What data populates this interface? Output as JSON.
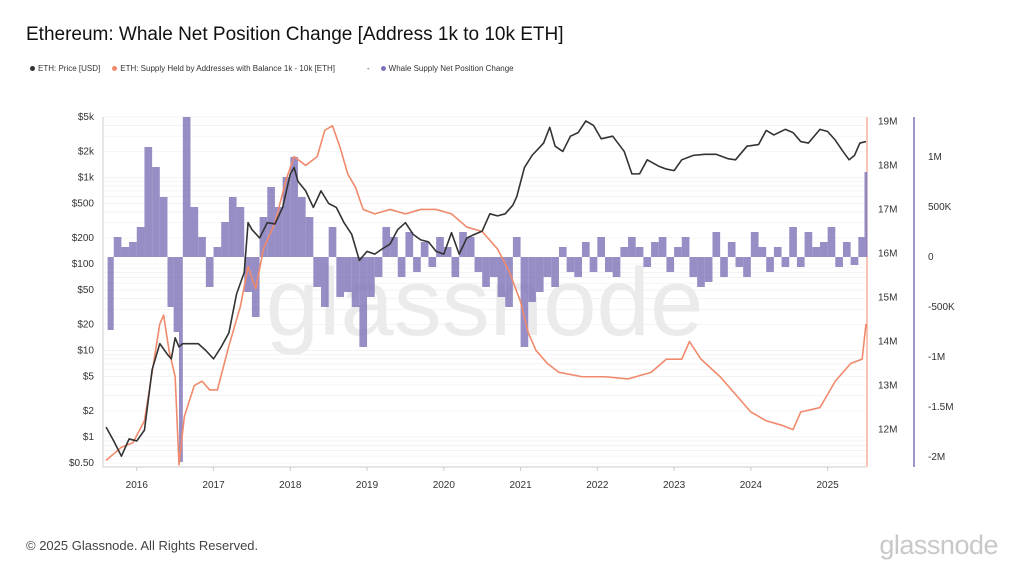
{
  "title": "Ethereum: Whale Net Position Change [Address 1k to 10k ETH]",
  "legend": [
    {
      "label": "ETH: Price [USD]",
      "color": "#333333"
    },
    {
      "label": "ETH: Supply Held by Addresses with Balance 1k - 10k [ETH]",
      "color": "#f08a6c"
    },
    {
      "label": "Whale Supply Net Position Change",
      "color": "#7e72b8",
      "prefix": "-"
    }
  ],
  "footer": "© 2025 Glassnode. All Rights Reserved.",
  "logo": "glassnode",
  "watermark": "glassnode",
  "chart_data": {
    "type": "line",
    "title": "Ethereum: Whale Net Position Change [Address 1k to 10k ETH]",
    "x_ticks": [
      "2016",
      "2017",
      "2018",
      "2019",
      "2020",
      "2021",
      "2022",
      "2023",
      "2024",
      "2025"
    ],
    "xlim": [
      2015.56,
      2025.5
    ],
    "y_left": {
      "scale": "log",
      "range": [
        0.45,
        5000
      ],
      "ticks": [
        "$5k",
        "$2k",
        "$1k",
        "$500",
        "$200",
        "$100",
        "$50",
        "$20",
        "$10",
        "$5",
        "$2",
        "$1",
        "$0.50"
      ],
      "tick_values": [
        5000,
        2000,
        1000,
        500,
        200,
        100,
        50,
        20,
        10,
        5,
        2,
        1,
        0.5
      ]
    },
    "y_right1": {
      "scale": "linear",
      "range": [
        11.15,
        19.1
      ],
      "ticks": [
        "19M",
        "18M",
        "17M",
        "16M",
        "15M",
        "14M",
        "13M",
        "12M"
      ],
      "tick_values": [
        19,
        18,
        17,
        16,
        15,
        14,
        13,
        12
      ],
      "unit": "M"
    },
    "y_right2": {
      "scale": "linear",
      "range": [
        -2.1,
        1.4
      ],
      "ticks": [
        "1M",
        "500K",
        "0",
        "-500K",
        "-1M",
        "-1.5M",
        "-2M"
      ],
      "tick_values": [
        1,
        0.5,
        0,
        -0.5,
        -1,
        -1.5,
        -2
      ],
      "unit": "M"
    },
    "grid": true,
    "series": [
      {
        "name": "ETH: Price [USD]",
        "axis": "left",
        "color": "#333333",
        "type": "line",
        "points": [
          [
            2015.6,
            1.3
          ],
          [
            2015.7,
            0.9
          ],
          [
            2015.8,
            0.6
          ],
          [
            2015.9,
            0.95
          ],
          [
            2016.0,
            0.9
          ],
          [
            2016.1,
            1.2
          ],
          [
            2016.2,
            6
          ],
          [
            2016.3,
            12
          ],
          [
            2016.4,
            9
          ],
          [
            2016.45,
            8
          ],
          [
            2016.5,
            14
          ],
          [
            2016.55,
            11
          ],
          [
            2016.6,
            12
          ],
          [
            2016.8,
            12
          ],
          [
            2016.9,
            10
          ],
          [
            2017.0,
            8
          ],
          [
            2017.1,
            11
          ],
          [
            2017.2,
            16
          ],
          [
            2017.3,
            45
          ],
          [
            2017.4,
            80
          ],
          [
            2017.45,
            300
          ],
          [
            2017.5,
            250
          ],
          [
            2017.6,
            200
          ],
          [
            2017.7,
            300
          ],
          [
            2017.8,
            290
          ],
          [
            2017.9,
            450
          ],
          [
            2018.0,
            1100
          ],
          [
            2018.05,
            1300
          ],
          [
            2018.1,
            900
          ],
          [
            2018.2,
            700
          ],
          [
            2018.3,
            450
          ],
          [
            2018.4,
            700
          ],
          [
            2018.5,
            500
          ],
          [
            2018.6,
            450
          ],
          [
            2018.7,
            300
          ],
          [
            2018.8,
            220
          ],
          [
            2018.9,
            110
          ],
          [
            2019.0,
            140
          ],
          [
            2019.1,
            130
          ],
          [
            2019.2,
            150
          ],
          [
            2019.3,
            170
          ],
          [
            2019.4,
            250
          ],
          [
            2019.5,
            300
          ],
          [
            2019.6,
            220
          ],
          [
            2019.7,
            190
          ],
          [
            2019.8,
            180
          ],
          [
            2019.9,
            140
          ],
          [
            2020.0,
            130
          ],
          [
            2020.1,
            230
          ],
          [
            2020.2,
            130
          ],
          [
            2020.3,
            200
          ],
          [
            2020.4,
            220
          ],
          [
            2020.5,
            240
          ],
          [
            2020.6,
            380
          ],
          [
            2020.7,
            360
          ],
          [
            2020.8,
            380
          ],
          [
            2020.9,
            480
          ],
          [
            2020.95,
            600
          ],
          [
            2021.05,
            1300
          ],
          [
            2021.15,
            1800
          ],
          [
            2021.3,
            2500
          ],
          [
            2021.38,
            3800
          ],
          [
            2021.45,
            2300
          ],
          [
            2021.55,
            2000
          ],
          [
            2021.65,
            3000
          ],
          [
            2021.75,
            3300
          ],
          [
            2021.85,
            4500
          ],
          [
            2021.95,
            4000
          ],
          [
            2022.05,
            2800
          ],
          [
            2022.2,
            3000
          ],
          [
            2022.35,
            2000
          ],
          [
            2022.45,
            1100
          ],
          [
            2022.55,
            1100
          ],
          [
            2022.65,
            1600
          ],
          [
            2022.8,
            1350
          ],
          [
            2022.9,
            1250
          ],
          [
            2023.0,
            1200
          ],
          [
            2023.1,
            1600
          ],
          [
            2023.25,
            1800
          ],
          [
            2023.4,
            1850
          ],
          [
            2023.55,
            1850
          ],
          [
            2023.7,
            1650
          ],
          [
            2023.8,
            1600
          ],
          [
            2023.95,
            2300
          ],
          [
            2024.1,
            2400
          ],
          [
            2024.2,
            3500
          ],
          [
            2024.3,
            3100
          ],
          [
            2024.45,
            3600
          ],
          [
            2024.55,
            3300
          ],
          [
            2024.65,
            2600
          ],
          [
            2024.75,
            2500
          ],
          [
            2024.9,
            3600
          ],
          [
            2025.0,
            3400
          ],
          [
            2025.1,
            2700
          ],
          [
            2025.2,
            2000
          ],
          [
            2025.28,
            1600
          ],
          [
            2025.35,
            1800
          ],
          [
            2025.42,
            2500
          ],
          [
            2025.5,
            2600
          ]
        ]
      },
      {
        "name": "ETH: Supply Held by Addresses with Balance 1k - 10k [ETH]",
        "axis": "right1",
        "color": "#f08a6c",
        "type": "line",
        "points": [
          [
            2015.6,
            11.3
          ],
          [
            2015.8,
            11.6
          ],
          [
            2015.95,
            11.7
          ],
          [
            2016.1,
            12.2
          ],
          [
            2016.2,
            13.3
          ],
          [
            2016.3,
            14.4
          ],
          [
            2016.35,
            14.6
          ],
          [
            2016.42,
            13.8
          ],
          [
            2016.5,
            13.2
          ],
          [
            2016.55,
            11.2
          ],
          [
            2016.62,
            12.3
          ],
          [
            2016.75,
            13.0
          ],
          [
            2016.85,
            13.1
          ],
          [
            2016.95,
            12.9
          ],
          [
            2017.05,
            12.9
          ],
          [
            2017.2,
            13.9
          ],
          [
            2017.35,
            14.8
          ],
          [
            2017.45,
            15.7
          ],
          [
            2017.55,
            15.2
          ],
          [
            2017.65,
            16.1
          ],
          [
            2017.8,
            16.7
          ],
          [
            2017.95,
            17.7
          ],
          [
            2018.05,
            18.2
          ],
          [
            2018.2,
            18.0
          ],
          [
            2018.35,
            18.2
          ],
          [
            2018.45,
            18.8
          ],
          [
            2018.55,
            18.9
          ],
          [
            2018.65,
            18.4
          ],
          [
            2018.75,
            17.8
          ],
          [
            2018.85,
            17.5
          ],
          [
            2018.95,
            17.0
          ],
          [
            2019.1,
            16.9
          ],
          [
            2019.3,
            17.0
          ],
          [
            2019.5,
            16.9
          ],
          [
            2019.7,
            17.0
          ],
          [
            2019.9,
            17.0
          ],
          [
            2020.1,
            16.9
          ],
          [
            2020.3,
            16.6
          ],
          [
            2020.5,
            16.5
          ],
          [
            2020.7,
            16.1
          ],
          [
            2020.85,
            15.6
          ],
          [
            2021.0,
            14.9
          ],
          [
            2021.1,
            14.2
          ],
          [
            2021.2,
            13.8
          ],
          [
            2021.35,
            13.5
          ],
          [
            2021.5,
            13.3
          ],
          [
            2021.8,
            13.2
          ],
          [
            2022.1,
            13.2
          ],
          [
            2022.4,
            13.15
          ],
          [
            2022.7,
            13.3
          ],
          [
            2022.9,
            13.6
          ],
          [
            2023.1,
            13.6
          ],
          [
            2023.2,
            14.0
          ],
          [
            2023.35,
            13.6
          ],
          [
            2023.6,
            13.2
          ],
          [
            2023.8,
            12.8
          ],
          [
            2024.0,
            12.4
          ],
          [
            2024.2,
            12.2
          ],
          [
            2024.4,
            12.1
          ],
          [
            2024.55,
            12.0
          ],
          [
            2024.65,
            12.4
          ],
          [
            2024.9,
            12.5
          ],
          [
            2025.0,
            12.8
          ],
          [
            2025.1,
            13.1
          ],
          [
            2025.3,
            13.5
          ],
          [
            2025.45,
            13.6
          ],
          [
            2025.5,
            14.4
          ]
        ]
      },
      {
        "name": "Whale Supply Net Position Change",
        "axis": "right2",
        "color": "#7e72b8",
        "type": "area",
        "points": [
          [
            2015.62,
            -0.73
          ],
          [
            2015.7,
            0.2
          ],
          [
            2015.8,
            0.1
          ],
          [
            2015.9,
            0.15
          ],
          [
            2016.0,
            0.3
          ],
          [
            2016.1,
            1.1
          ],
          [
            2016.2,
            0.9
          ],
          [
            2016.3,
            0.6
          ],
          [
            2016.4,
            -0.5
          ],
          [
            2016.48,
            -0.75
          ],
          [
            2016.55,
            -2.05
          ],
          [
            2016.6,
            1.4
          ],
          [
            2016.7,
            0.5
          ],
          [
            2016.8,
            0.2
          ],
          [
            2016.9,
            -0.3
          ],
          [
            2017.0,
            0.1
          ],
          [
            2017.1,
            0.35
          ],
          [
            2017.2,
            0.6
          ],
          [
            2017.3,
            0.5
          ],
          [
            2017.4,
            -0.35
          ],
          [
            2017.5,
            -0.6
          ],
          [
            2017.6,
            0.4
          ],
          [
            2017.7,
            0.7
          ],
          [
            2017.8,
            0.5
          ],
          [
            2017.9,
            0.8
          ],
          [
            2018.0,
            1.0
          ],
          [
            2018.1,
            0.6
          ],
          [
            2018.2,
            0.4
          ],
          [
            2018.3,
            -0.3
          ],
          [
            2018.4,
            -0.5
          ],
          [
            2018.5,
            0.3
          ],
          [
            2018.6,
            -0.4
          ],
          [
            2018.7,
            -0.35
          ],
          [
            2018.8,
            -0.5
          ],
          [
            2018.9,
            -0.9
          ],
          [
            2019.0,
            -0.4
          ],
          [
            2019.1,
            -0.2
          ],
          [
            2019.2,
            0.3
          ],
          [
            2019.3,
            0.2
          ],
          [
            2019.4,
            -0.2
          ],
          [
            2019.5,
            0.25
          ],
          [
            2019.6,
            -0.15
          ],
          [
            2019.7,
            0.15
          ],
          [
            2019.8,
            -0.1
          ],
          [
            2019.9,
            0.2
          ],
          [
            2020.0,
            0.1
          ],
          [
            2020.1,
            -0.2
          ],
          [
            2020.2,
            0.25
          ],
          [
            2020.3,
            0.2
          ],
          [
            2020.4,
            -0.15
          ],
          [
            2020.5,
            -0.3
          ],
          [
            2020.6,
            -0.2
          ],
          [
            2020.7,
            -0.4
          ],
          [
            2020.8,
            -0.5
          ],
          [
            2020.9,
            0.2
          ],
          [
            2021.0,
            -0.9
          ],
          [
            2021.1,
            -0.45
          ],
          [
            2021.2,
            -0.35
          ],
          [
            2021.3,
            -0.2
          ],
          [
            2021.4,
            -0.3
          ],
          [
            2021.5,
            0.1
          ],
          [
            2021.6,
            -0.15
          ],
          [
            2021.7,
            -0.2
          ],
          [
            2021.8,
            0.15
          ],
          [
            2021.9,
            -0.15
          ],
          [
            2022.0,
            0.2
          ],
          [
            2022.1,
            -0.15
          ],
          [
            2022.2,
            -0.2
          ],
          [
            2022.3,
            0.1
          ],
          [
            2022.4,
            0.2
          ],
          [
            2022.5,
            0.1
          ],
          [
            2022.6,
            -0.1
          ],
          [
            2022.7,
            0.15
          ],
          [
            2022.8,
            0.2
          ],
          [
            2022.9,
            -0.15
          ],
          [
            2023.0,
            0.1
          ],
          [
            2023.1,
            0.2
          ],
          [
            2023.2,
            -0.2
          ],
          [
            2023.3,
            -0.3
          ],
          [
            2023.4,
            -0.25
          ],
          [
            2023.5,
            0.25
          ],
          [
            2023.6,
            -0.2
          ],
          [
            2023.7,
            0.15
          ],
          [
            2023.8,
            -0.1
          ],
          [
            2023.9,
            -0.2
          ],
          [
            2024.0,
            0.25
          ],
          [
            2024.1,
            0.1
          ],
          [
            2024.2,
            -0.15
          ],
          [
            2024.3,
            0.1
          ],
          [
            2024.4,
            -0.1
          ],
          [
            2024.5,
            0.3
          ],
          [
            2024.6,
            -0.1
          ],
          [
            2024.7,
            0.25
          ],
          [
            2024.8,
            0.1
          ],
          [
            2024.9,
            0.15
          ],
          [
            2025.0,
            0.3
          ],
          [
            2025.1,
            -0.1
          ],
          [
            2025.2,
            0.15
          ],
          [
            2025.3,
            -0.08
          ],
          [
            2025.4,
            0.2
          ],
          [
            2025.48,
            0.85
          ]
        ]
      }
    ]
  }
}
